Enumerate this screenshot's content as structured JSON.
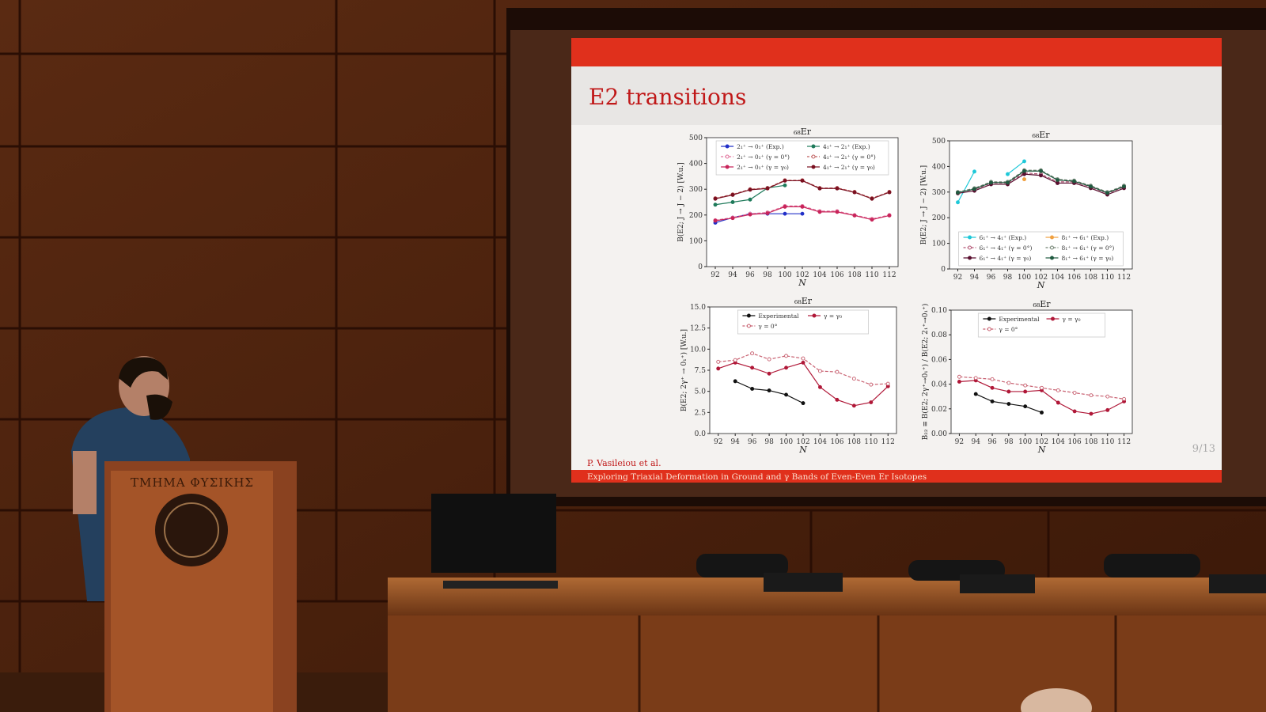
{
  "slide": {
    "title": "E2 transitions",
    "author": "P. Vasileiou et al.",
    "footer": "Exploring Triaxial Deformation in Ground and γ Bands of Even-Even Er Isotopes",
    "page": "9/13"
  },
  "podium": {
    "sign": "ΤΜΗΜΑ ΦΥΣΙΚΗΣ"
  },
  "chart_data": [
    {
      "type": "line",
      "title": "₆₈Er",
      "x_label": "N",
      "y_label": "B(E2; J → J − 2) [W.u.]",
      "x": [
        92,
        94,
        96,
        98,
        100,
        102,
        104,
        106,
        108,
        110,
        112
      ],
      "xlim": [
        91,
        113
      ],
      "xticks": [
        92,
        94,
        96,
        98,
        100,
        102,
        104,
        106,
        108,
        110,
        112
      ],
      "ylim": [
        0,
        500
      ],
      "yticks": [
        0,
        100,
        200,
        300,
        400,
        500
      ],
      "legend": "upper",
      "series": [
        {
          "name": "2₁⁺ → 0₁⁺ (Exp.)",
          "color": "#2230c8",
          "marker": "filled",
          "linestyle": "solid",
          "values": [
            170,
            190,
            205,
            205,
            205,
            205,
            null,
            null,
            null,
            null,
            null
          ]
        },
        {
          "name": "2₁⁺ → 0₁⁺ (γ = 0°)",
          "color": "#e0709a",
          "marker": "open",
          "linestyle": "dashed",
          "values": [
            180,
            190,
            205,
            210,
            235,
            235,
            215,
            215,
            200,
            185,
            200
          ]
        },
        {
          "name": "2₁⁺ → 0₁⁺ (γ = γ₀)",
          "color": "#c8245a",
          "marker": "filled",
          "linestyle": "solid",
          "values": [
            178,
            188,
            202,
            207,
            232,
            232,
            212,
            212,
            198,
            182,
            198
          ]
        },
        {
          "name": "4₁⁺ → 2₁⁺ (Exp.)",
          "color": "#1e7a5a",
          "marker": "filled",
          "linestyle": "solid",
          "values": [
            240,
            250,
            260,
            305,
            315,
            null,
            null,
            null,
            null,
            null,
            null
          ]
        },
        {
          "name": "4₁⁺ → 2₁⁺ (γ = 0°)",
          "color": "#c06060",
          "marker": "open",
          "linestyle": "dashed",
          "values": [
            265,
            280,
            300,
            305,
            335,
            335,
            305,
            305,
            290,
            265,
            290
          ]
        },
        {
          "name": "4₁⁺ → 2₁⁺ (γ = γ₀)",
          "color": "#7a1020",
          "marker": "filled",
          "linestyle": "solid",
          "values": [
            263,
            278,
            298,
            303,
            333,
            333,
            303,
            303,
            288,
            263,
            288
          ]
        }
      ]
    },
    {
      "type": "line",
      "title": "₆₈Er",
      "x_label": "N",
      "y_label": "B(E2; J → J − 2) [W.u.]",
      "x": [
        92,
        94,
        96,
        98,
        100,
        102,
        104,
        106,
        108,
        110,
        112
      ],
      "xlim": [
        91,
        113
      ],
      "xticks": [
        92,
        94,
        96,
        98,
        100,
        102,
        104,
        106,
        108,
        110,
        112
      ],
      "ylim": [
        0,
        500
      ],
      "yticks": [
        0,
        100,
        200,
        300,
        400,
        500
      ],
      "legend": "lower",
      "series": [
        {
          "name": "6₁⁺ → 4₁⁺ (Exp.)",
          "color": "#1ec8d8",
          "marker": "filled",
          "linestyle": "solid",
          "values": [
            260,
            380,
            null,
            370,
            420,
            null,
            null,
            null,
            null,
            null,
            null
          ]
        },
        {
          "name": "6₁⁺ → 4₁⁺ (γ = 0°)",
          "color": "#b05070",
          "marker": "open",
          "linestyle": "dashed",
          "values": [
            300,
            310,
            335,
            335,
            375,
            370,
            340,
            340,
            320,
            295,
            320
          ]
        },
        {
          "name": "6₁⁺ → 4₁⁺ (γ = γ₀)",
          "color": "#5a1030",
          "marker": "filled",
          "linestyle": "solid",
          "values": [
            295,
            305,
            330,
            330,
            370,
            365,
            335,
            335,
            315,
            290,
            315
          ]
        },
        {
          "name": "8₁⁺ → 6₁⁺ (Exp.)",
          "color": "#f0a040",
          "marker": "filled",
          "linestyle": "solid",
          "values": [
            null,
            null,
            null,
            null,
            350,
            null,
            null,
            null,
            null,
            null,
            null
          ]
        },
        {
          "name": "8₁⁺ → 6₁⁺ (γ = 0°)",
          "color": "#708070",
          "marker": "open",
          "linestyle": "dashed",
          "values": [
            300,
            315,
            340,
            340,
            385,
            385,
            350,
            345,
            325,
            300,
            325
          ]
        },
        {
          "name": "8₁⁺ → 6₁⁺ (γ = γ₀)",
          "color": "#205a40",
          "marker": "filled",
          "linestyle": "solid",
          "values": [
            298,
            312,
            337,
            337,
            382,
            382,
            347,
            342,
            322,
            297,
            322
          ]
        }
      ]
    },
    {
      "type": "line",
      "title": "₆₈Er",
      "x_label": "N",
      "y_label": "B(E2; 2γ⁺ → 0₁⁺) [W.u.]",
      "x": [
        92,
        94,
        96,
        98,
        100,
        102,
        104,
        106,
        108,
        110,
        112
      ],
      "xlim": [
        91,
        113
      ],
      "xticks": [
        92,
        94,
        96,
        98,
        100,
        102,
        104,
        106,
        108,
        110,
        112
      ],
      "ylim": [
        0,
        15
      ],
      "yticks": [
        {
          "value": 0,
          "label": "0.0"
        },
        {
          "value": 2.5,
          "label": "2.5"
        },
        {
          "value": 5,
          "label": "5.0"
        },
        {
          "value": 7.5,
          "label": "7.5"
        },
        {
          "value": 10,
          "label": "10.0"
        },
        {
          "value": 12.5,
          "label": "12.5"
        },
        {
          "value": 15,
          "label": "15.0"
        }
      ],
      "legend": "upper",
      "series": [
        {
          "name": "Experimental",
          "color": "#111111",
          "marker": "filled",
          "linestyle": "solid",
          "values": [
            null,
            6.2,
            5.3,
            5.1,
            4.6,
            3.6,
            null,
            null,
            null,
            null,
            null
          ]
        },
        {
          "name": "γ = γ₀",
          "color": "#b01838",
          "marker": "filled",
          "linestyle": "solid",
          "values": [
            7.7,
            8.4,
            7.8,
            7.1,
            7.8,
            8.4,
            5.5,
            4.0,
            3.3,
            3.7,
            5.6
          ]
        },
        {
          "name": "γ = 0°",
          "color": "#c86070",
          "marker": "open",
          "linestyle": "dashed",
          "values": [
            8.5,
            8.7,
            9.5,
            8.8,
            9.2,
            8.9,
            7.4,
            7.3,
            6.5,
            5.8,
            5.9
          ]
        }
      ]
    },
    {
      "type": "line",
      "title": "₆₈Er",
      "x_label": "N",
      "y_label": "B₂₂ ≡ B(E2; 2γ⁺→0₁⁺) / B(E2; 2₁⁺→0₁⁺)",
      "x": [
        92,
        94,
        96,
        98,
        100,
        102,
        104,
        106,
        108,
        110,
        112
      ],
      "xlim": [
        91,
        113
      ],
      "xticks": [
        92,
        94,
        96,
        98,
        100,
        102,
        104,
        106,
        108,
        110,
        112
      ],
      "ylim": [
        0,
        0.1
      ],
      "yticks": [
        {
          "value": 0,
          "label": "0.00"
        },
        {
          "value": 0.02,
          "label": "0.02"
        },
        {
          "value": 0.04,
          "label": "0.04"
        },
        {
          "value": 0.06,
          "label": "0.06"
        },
        {
          "value": 0.08,
          "label": "0.08"
        },
        {
          "value": 0.1,
          "label": "0.10"
        }
      ],
      "legend": "upper",
      "series": [
        {
          "name": "Experimental",
          "color": "#111111",
          "marker": "filled",
          "linestyle": "solid",
          "values": [
            null,
            0.032,
            0.026,
            0.024,
            0.022,
            0.017,
            null,
            null,
            null,
            null,
            null
          ]
        },
        {
          "name": "γ = γ₀",
          "color": "#b01838",
          "marker": "filled",
          "linestyle": "solid",
          "values": [
            0.042,
            0.043,
            0.037,
            0.034,
            0.034,
            0.035,
            0.025,
            0.018,
            0.016,
            0.019,
            0.026
          ]
        },
        {
          "name": "γ = 0°",
          "color": "#c86070",
          "marker": "open",
          "linestyle": "dashed",
          "values": [
            0.046,
            0.045,
            0.044,
            0.041,
            0.039,
            0.037,
            0.035,
            0.033,
            0.031,
            0.03,
            0.028
          ]
        }
      ]
    }
  ]
}
